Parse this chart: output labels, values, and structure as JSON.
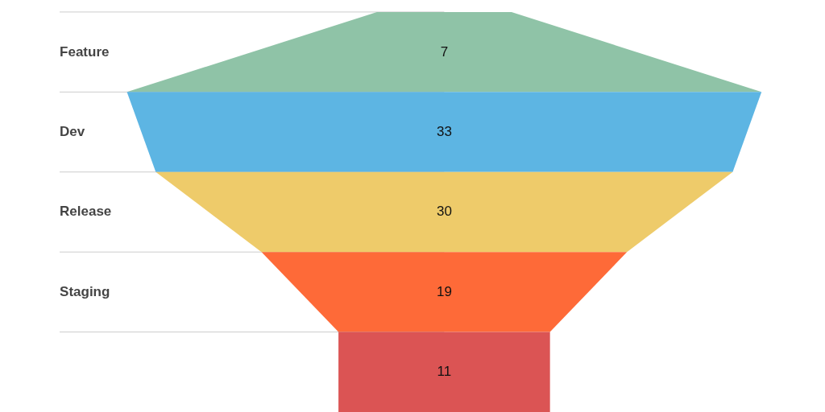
{
  "chart_data": {
    "type": "other",
    "categories": [
      "Feature",
      "Dev",
      "Release",
      "Staging",
      null
    ],
    "values": [
      7,
      33,
      30,
      19,
      11
    ],
    "colors": [
      "#8fc3a7",
      "#5db5e3",
      "#eecb6a",
      "#fe6a38",
      "#db5454"
    ],
    "data_labels": true
  }
}
